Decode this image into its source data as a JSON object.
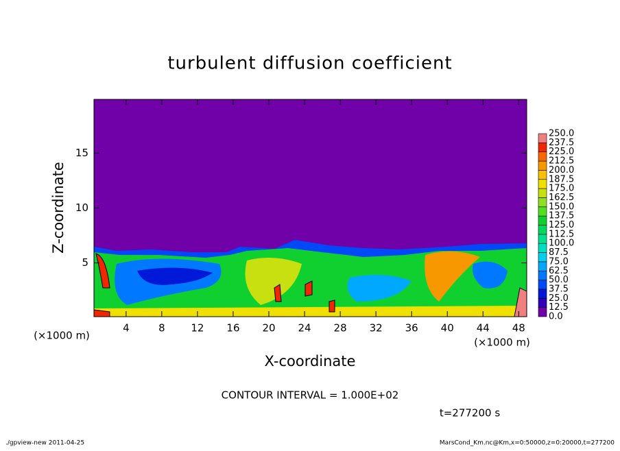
{
  "chart_data": {
    "type": "contour",
    "title": "turbulent diffusion coefficient",
    "x_label": "X-coordinate",
    "y_label": "Z-coordinate",
    "x_unit_left": "(×1000 m)",
    "x_unit_right": "(×1000 m)",
    "xlim": [
      0.4,
      48.9
    ],
    "ylim": [
      0.1,
      19.9
    ],
    "xticks": [
      4,
      8,
      12,
      16,
      20,
      24,
      28,
      32,
      36,
      40,
      44,
      48
    ],
    "yticks": [
      5,
      10,
      15
    ],
    "contour_interval": "CONTOUR INTERVAL = 1.000E+02",
    "time_label": "t=277200 s",
    "footer_left": "./gpview-new   2011-04-25",
    "footer_right": "MarsCond_Km.nc@Km,x=0:50000,z=0:20000,t=277200",
    "colorbar": {
      "levels": [
        {
          "value": 0,
          "label": "0.0"
        },
        {
          "value": 12.5,
          "label": "12.5"
        },
        {
          "value": 25,
          "label": "25.0"
        },
        {
          "value": 37.5,
          "label": "37.5"
        },
        {
          "value": 50,
          "label": "50.0"
        },
        {
          "value": 62.5,
          "label": "62.5"
        },
        {
          "value": 75,
          "label": "75.0"
        },
        {
          "value": 87.5,
          "label": "87.5"
        },
        {
          "value": 100,
          "label": "100.0"
        },
        {
          "value": 112.5,
          "label": "112.5"
        },
        {
          "value": 125,
          "label": "125.0"
        },
        {
          "value": 137.5,
          "label": "137.5"
        },
        {
          "value": 150,
          "label": "150.0"
        },
        {
          "value": 162.5,
          "label": "162.5"
        },
        {
          "value": 175,
          "label": "175.0"
        },
        {
          "value": 187.5,
          "label": "187.5"
        },
        {
          "value": 200,
          "label": "200.0"
        },
        {
          "value": 212.5,
          "label": "212.5"
        },
        {
          "value": 225,
          "label": "225.0"
        },
        {
          "value": 237.5,
          "label": "237.5"
        },
        {
          "value": 250,
          "label": "250.0"
        }
      ],
      "colors": [
        "#7000a8",
        "#3000b8",
        "#0018d8",
        "#0048f8",
        "#0078ff",
        "#00a8ff",
        "#00d0f0",
        "#00e0c0",
        "#00e090",
        "#00d860",
        "#10d030",
        "#50e020",
        "#90e020",
        "#c8e010",
        "#f0e000",
        "#f8c000",
        "#f89800",
        "#f86800",
        "#f02800",
        "#f08080"
      ]
    }
  }
}
